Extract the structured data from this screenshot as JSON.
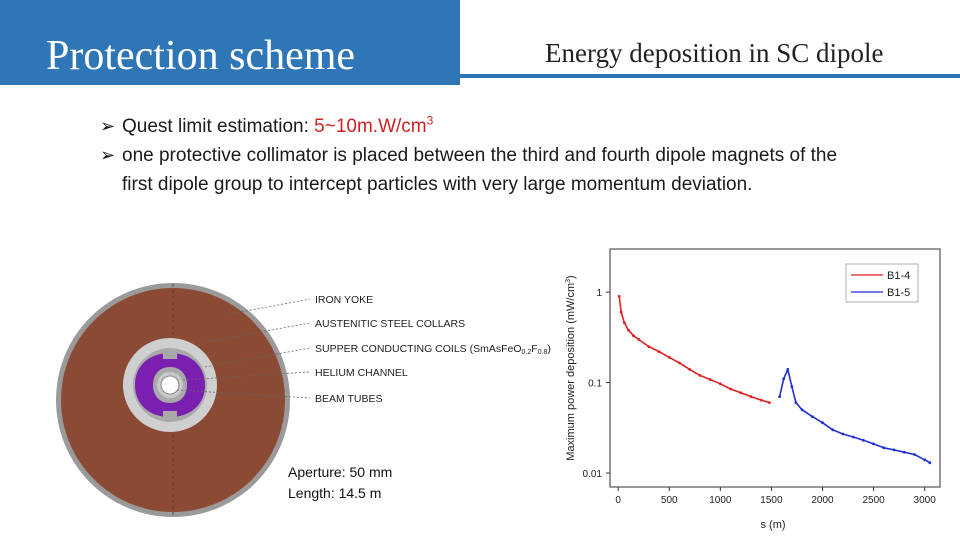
{
  "title": "Protection scheme",
  "subtitle": "Energy deposition in SC dipole",
  "bullets": [
    {
      "prefix": "Quest limit estimation: ",
      "highlight": "5~10m.W/cm",
      "sup": "3"
    },
    {
      "text": "one protective collimator is placed between the third and fourth dipole magnets of the first dipole group to intercept particles with very large momentum deviation."
    }
  ],
  "diagram": {
    "labels": {
      "iron_yoke": "IRON YOKE",
      "collars": "AUSTENITIC STEEL COLLARS",
      "coils": "SUPPER CONDUCTING COILS (SmAsFeO",
      "coils_sub1": "0.2",
      "coils_mid": "F",
      "coils_sub2": "0.8",
      "coils_end": ")",
      "helium": "HELIUM CHANNEL",
      "beam": "BEAM TUBES"
    },
    "aperture": "Aperture: 50 mm",
    "length": "Length: 14.5 m",
    "colors": {
      "yoke": "#8b4a33",
      "collar": "#c8c8c8",
      "coil": "#7a1fb0",
      "bore": "#ffffff"
    }
  },
  "chart_data": {
    "type": "line",
    "xlabel": "s (m)",
    "ylabel": "Maximum power deposition (mW/cm",
    "ylabel_sup": "3",
    "ylabel_end": ")",
    "xlim": [
      -80,
      3150
    ],
    "ylim_log": [
      0.007,
      3.0
    ],
    "xticks": [
      0,
      500,
      1000,
      1500,
      2000,
      2500,
      3000
    ],
    "yticks": [
      {
        "value": 1,
        "label": "1"
      },
      {
        "value": 0.1,
        "label": "0.1"
      },
      {
        "value": 0.01,
        "label": "0.01"
      }
    ],
    "legend_position": "top-right",
    "series": [
      {
        "name": "B1-4",
        "color": "#e02020",
        "points": [
          [
            10,
            0.9
          ],
          [
            30,
            0.6
          ],
          [
            60,
            0.46
          ],
          [
            100,
            0.38
          ],
          [
            150,
            0.33
          ],
          [
            200,
            0.3
          ],
          [
            300,
            0.25
          ],
          [
            400,
            0.22
          ],
          [
            500,
            0.19
          ],
          [
            600,
            0.165
          ],
          [
            700,
            0.14
          ],
          [
            800,
            0.12
          ],
          [
            900,
            0.108
          ],
          [
            1000,
            0.097
          ],
          [
            1100,
            0.085
          ],
          [
            1200,
            0.077
          ],
          [
            1300,
            0.07
          ],
          [
            1400,
            0.064
          ],
          [
            1480,
            0.06
          ]
        ]
      },
      {
        "name": "B1-5",
        "color": "#2030d0",
        "points": [
          [
            1580,
            0.07
          ],
          [
            1620,
            0.11
          ],
          [
            1660,
            0.14
          ],
          [
            1700,
            0.09
          ],
          [
            1740,
            0.06
          ],
          [
            1800,
            0.05
          ],
          [
            1900,
            0.042
          ],
          [
            2000,
            0.036
          ],
          [
            2100,
            0.03
          ],
          [
            2200,
            0.027
          ],
          [
            2300,
            0.025
          ],
          [
            2400,
            0.023
          ],
          [
            2500,
            0.021
          ],
          [
            2600,
            0.019
          ],
          [
            2700,
            0.018
          ],
          [
            2800,
            0.017
          ],
          [
            2900,
            0.016
          ],
          [
            3000,
            0.014
          ],
          [
            3050,
            0.013
          ]
        ]
      }
    ]
  }
}
